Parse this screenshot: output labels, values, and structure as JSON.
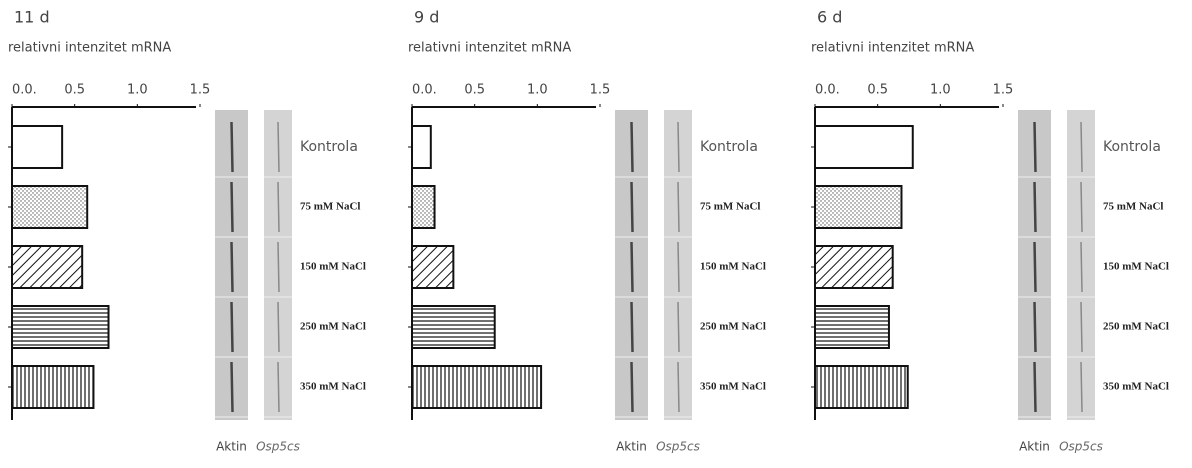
{
  "chart_data": [
    {
      "type": "bar",
      "orientation": "horizontal",
      "title": "11 d",
      "xlabel": "relativni intenzitet mRNA",
      "categories": [
        "Kontrola",
        "75 mM NaCl",
        "150 mM NaCl",
        "250 mM NaCl",
        "350 mM NaCl"
      ],
      "values": [
        0.4,
        0.6,
        0.56,
        0.77,
        0.65
      ],
      "patterns": [
        "none",
        "dots",
        "diagonal",
        "horizontal",
        "vertical"
      ],
      "xlim": [
        0,
        1.5
      ],
      "xticks": [
        {
          "value": 0,
          "label": "0.0."
        },
        0.5,
        {
          "value": 1,
          "label": "1.0"
        },
        1.5
      ],
      "lanes": [
        "Aktin",
        "Osp5cs"
      ]
    },
    {
      "type": "bar",
      "orientation": "horizontal",
      "title": "9 d",
      "xlabel": "relativni intenzitet mRNA",
      "categories": [
        "Kontrola",
        "75 mM NaCl",
        "150 mM NaCl",
        "250 mM NaCl",
        "350 mM NaCl"
      ],
      "values": [
        0.15,
        0.18,
        0.33,
        0.66,
        1.03
      ],
      "patterns": [
        "none",
        "dots",
        "diagonal",
        "horizontal",
        "vertical"
      ],
      "xlim": [
        0,
        1.5
      ],
      "xticks": [
        {
          "value": 0,
          "label": "0.0."
        },
        0.5,
        {
          "value": 1,
          "label": "1.0"
        },
        1.5
      ],
      "lanes": [
        "Aktin",
        "Osp5cs"
      ]
    },
    {
      "type": "bar",
      "orientation": "horizontal",
      "title": "6 d",
      "xlabel": "relativni intenzitet mRNA",
      "categories": [
        "Kontrola",
        "75 mM NaCl",
        "150 mM NaCl",
        "250 mM NaCl",
        "350 mM NaCl"
      ],
      "values": [
        0.78,
        0.69,
        0.62,
        0.59,
        0.74
      ],
      "patterns": [
        "none",
        "dots",
        "diagonal",
        "horizontal",
        "vertical"
      ],
      "xlim": [
        0,
        1.5
      ],
      "xticks": [
        {
          "value": 0,
          "label": "0.0."
        },
        0.5,
        {
          "value": 1,
          "label": "1.0"
        },
        1.5
      ],
      "lanes": [
        "Aktin",
        "Osp5cs"
      ]
    }
  ]
}
